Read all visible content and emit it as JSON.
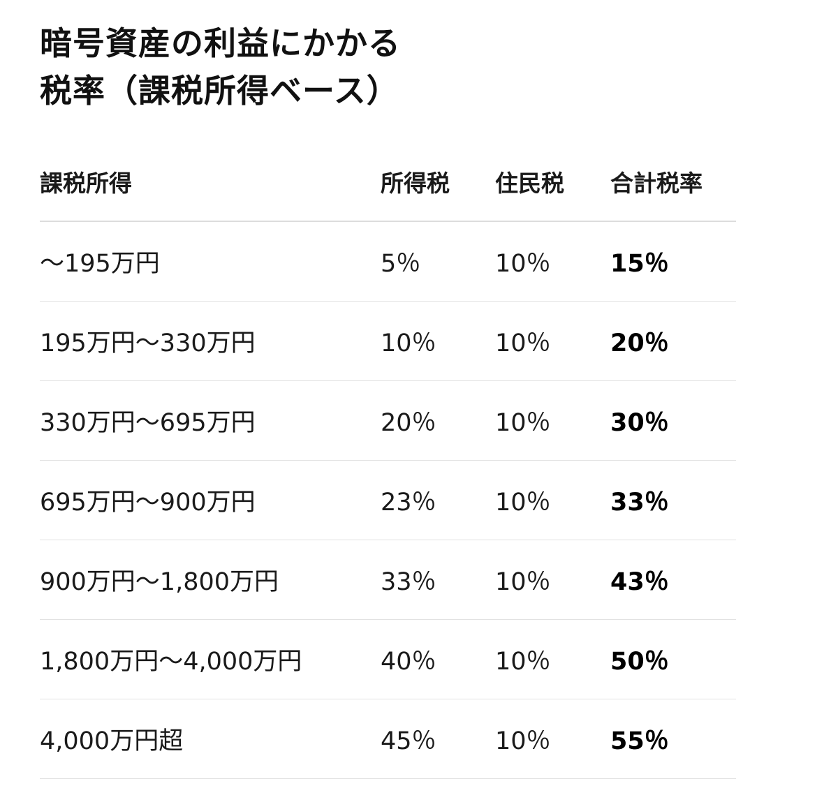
{
  "title": {
    "line1": "暗号資産の利益にかかる",
    "line2": "税率（課税所得ベース）"
  },
  "table": {
    "headers": [
      "課税所得",
      "所得税",
      "住民税",
      "合計税率"
    ],
    "rows": [
      [
        "～195万円",
        "5％",
        "10％",
        "15％"
      ],
      [
        "195万円～330万円",
        "10％",
        "10％",
        "20％"
      ],
      [
        "330万円～695万円",
        "20％",
        "10％",
        "30％"
      ],
      [
        "695万円～900万円",
        "23％",
        "10％",
        "33％"
      ],
      [
        "900万円～1,800万円",
        "33％",
        "10％",
        "43％"
      ],
      [
        "1,800万円～4,000万円",
        "40％",
        "10％",
        "50％"
      ],
      [
        "4,000万円超",
        "45％",
        "10％",
        "55％"
      ]
    ]
  }
}
